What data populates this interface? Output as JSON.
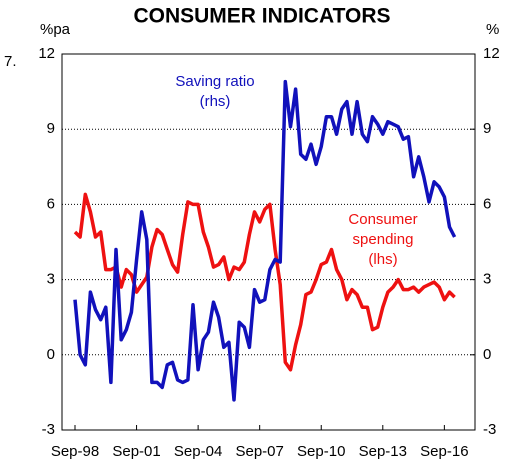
{
  "chart_data": {
    "type": "line",
    "title": "CONSUMER INDICATORS",
    "chart_number": "7.",
    "ylabel": "%pa",
    "y2label": "%",
    "categories": [
      "Sep-98",
      null,
      null,
      null,
      null,
      null,
      null,
      null,
      null,
      null,
      null,
      null,
      "Sep-01",
      null,
      null,
      null,
      null,
      null,
      null,
      null,
      null,
      null,
      null,
      null,
      "Sep-04",
      null,
      null,
      null,
      null,
      null,
      null,
      null,
      null,
      null,
      null,
      null,
      "Sep-07",
      null,
      null,
      null,
      null,
      null,
      null,
      null,
      null,
      null,
      null,
      null,
      "Sep-10",
      null,
      null,
      null,
      null,
      null,
      null,
      null,
      null,
      null,
      null,
      null,
      "Sep-13",
      null,
      null,
      null,
      null,
      null,
      null,
      null,
      null,
      null,
      null,
      null,
      "Sep-16",
      null,
      null
    ],
    "series": [
      {
        "name": "Consumer spending (lhs)",
        "color": "#ee1111",
        "axis": "y",
        "values": [
          4.9,
          4.7,
          6.4,
          5.7,
          4.7,
          4.9,
          3.4,
          3.4,
          3.5,
          2.7,
          3.4,
          3.2,
          2.5,
          2.8,
          3.1,
          4.3,
          5.0,
          4.8,
          4.2,
          3.6,
          3.3,
          4.8,
          6.1,
          6.0,
          6.0,
          4.9,
          4.3,
          3.5,
          3.6,
          3.9,
          3.0,
          3.5,
          3.4,
          3.7,
          4.8,
          5.7,
          5.3,
          5.8,
          6.0,
          4.2,
          2.8,
          -0.3,
          -0.6,
          0.4,
          1.2,
          2.4,
          2.5,
          3.0,
          3.6,
          3.7,
          4.2,
          3.4,
          3.0,
          2.2,
          2.6,
          2.4,
          1.9,
          1.9,
          1.0,
          1.1,
          1.9,
          2.5,
          2.7,
          3.0,
          2.6,
          2.6,
          2.7,
          2.5,
          2.7,
          2.8,
          2.9,
          2.7,
          2.2,
          2.5,
          2.3
        ]
      },
      {
        "name": "Saving ratio (rhs)",
        "color": "#1111bb",
        "axis": "y2",
        "values": [
          2.2,
          0,
          -0.4,
          2.5,
          1.8,
          1.4,
          1.9,
          -1.1,
          4.2,
          0.6,
          1.0,
          1.7,
          3.8,
          5.7,
          4.6,
          -1.1,
          -1.1,
          -1.3,
          -0.4,
          -0.3,
          -1.0,
          -1.1,
          -1.0,
          2.0,
          -0.6,
          0.6,
          0.9,
          2.1,
          1.5,
          0.3,
          0.5,
          -1.8,
          1.3,
          1.1,
          0.3,
          2.6,
          2.1,
          2.2,
          3.4,
          3.8,
          3.7,
          10.9,
          9.1,
          10.6,
          8.0,
          7.8,
          8.4,
          7.6,
          8.3,
          9.5,
          9.5,
          8.8,
          9.8,
          10.1,
          8.8,
          10.1,
          8.8,
          8.5,
          9.5,
          9.2,
          8.8,
          9.3,
          9.2,
          9.1,
          8.6,
          8.7,
          7.1,
          7.9,
          7.1,
          6.1,
          6.9,
          6.7,
          6.3,
          5.1,
          4.7
        ]
      }
    ],
    "annotations": [
      {
        "lines": [
          "Saving ratio",
          "(rhs)"
        ],
        "color": "#1111bb"
      },
      {
        "lines": [
          "Consumer",
          "spending",
          "(lhs)"
        ],
        "color": "#ee1111"
      }
    ],
    "ylim": [
      -3,
      12
    ],
    "yticks": [
      -3,
      0,
      3,
      6,
      9,
      12
    ],
    "y2lim": [
      -3,
      12
    ],
    "y2ticks": [
      -3,
      0,
      3,
      6,
      9,
      12
    ],
    "grid": true
  }
}
